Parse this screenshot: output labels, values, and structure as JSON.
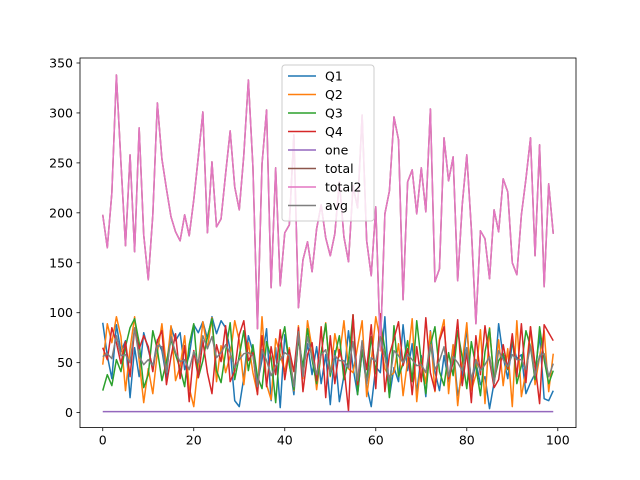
{
  "chart_data": {
    "type": "line",
    "x": [
      0,
      1,
      2,
      3,
      4,
      5,
      6,
      7,
      8,
      9,
      10,
      11,
      12,
      13,
      14,
      15,
      16,
      17,
      18,
      19,
      20,
      21,
      22,
      23,
      24,
      25,
      26,
      27,
      28,
      29,
      30,
      31,
      32,
      33,
      34,
      35,
      36,
      37,
      38,
      39,
      40,
      41,
      42,
      43,
      44,
      45,
      46,
      47,
      48,
      49,
      50,
      51,
      52,
      53,
      54,
      55,
      56,
      57,
      58,
      59,
      60,
      61,
      62,
      63,
      64,
      65,
      66,
      67,
      68,
      69,
      70,
      71,
      72,
      73,
      74,
      75,
      76,
      77,
      78,
      79,
      80,
      81,
      82,
      83,
      84,
      85,
      86,
      87,
      88,
      89,
      90,
      91,
      92,
      93,
      94,
      95,
      96,
      97,
      98,
      99
    ],
    "xlim": [
      -5,
      104
    ],
    "ylim": [
      -15,
      355
    ],
    "xticks": [
      0,
      20,
      40,
      60,
      80,
      100
    ],
    "yticks": [
      0,
      50,
      100,
      150,
      200,
      250,
      300,
      350
    ],
    "grid": false,
    "legend_position": "upper center",
    "series": [
      {
        "name": "Q1",
        "color": "#1f77b4",
        "values": [
          90,
          57,
          34,
          88,
          61,
          72,
          15,
          65,
          36,
          80,
          63,
          45,
          73,
          62,
          35,
          86,
          72,
          80,
          43,
          57,
          88,
          80,
          91,
          74,
          96,
          79,
          92,
          85,
          63,
          12,
          6,
          35,
          77,
          61,
          30,
          53,
          84,
          12,
          65,
          5,
          78,
          50,
          18,
          77,
          41,
          69,
          38,
          66,
          29,
          58,
          8,
          62,
          11,
          37,
          82,
          45,
          18,
          63,
          26,
          6,
          46,
          40,
          96,
          16,
          45,
          31,
          88,
          42,
          69,
          20,
          57,
          16,
          82,
          41,
          22,
          57,
          31,
          68,
          17,
          37,
          85,
          27,
          51,
          28,
          36,
          4,
          30,
          89,
          56,
          34,
          70,
          54,
          58,
          19,
          30,
          39,
          78,
          14,
          12,
          22
        ]
      },
      {
        "name": "Q2",
        "color": "#ff7f0e",
        "values": [
          48,
          89,
          70,
          96,
          76,
          22,
          64,
          96,
          52,
          10,
          44,
          19,
          60,
          89,
          45,
          87,
          32,
          46,
          77,
          25,
          6,
          49,
          91,
          64,
          95,
          31,
          67,
          40,
          57,
          92,
          72,
          28,
          70,
          40,
          19,
          96,
          28,
          13,
          74,
          58,
          41,
          65,
          22,
          87,
          34,
          92,
          64,
          23,
          59,
          90,
          36,
          79,
          56,
          92,
          44,
          40,
          66,
          92,
          16,
          51,
          96,
          72,
          44,
          36,
          40,
          69,
          17,
          52,
          94,
          11,
          54,
          29,
          81,
          21,
          74,
          93,
          19,
          68,
          7,
          50,
          90,
          22,
          38,
          83,
          9,
          85,
          29,
          73,
          27,
          64,
          6,
          92,
          16,
          41,
          86,
          28,
          56,
          82,
          21,
          59
        ]
      },
      {
        "name": "Q3",
        "color": "#2ca02c",
        "values": [
          22,
          38,
          27,
          53,
          41,
          66,
          85,
          94,
          70,
          25,
          38,
          82,
          63,
          32,
          51,
          73,
          58,
          44,
          26,
          68,
          89,
          35,
          52,
          76,
          94,
          42,
          30,
          61,
          90,
          33,
          57,
          82,
          42,
          68,
          36,
          24,
          71,
          55,
          10,
          67,
          86,
          48,
          23,
          74,
          46,
          84,
          53,
          29,
          60,
          89,
          37,
          57,
          77,
          33,
          52,
          98,
          18,
          63,
          32,
          76,
          39,
          91,
          64,
          15,
          87,
          36,
          49,
          72,
          31,
          92,
          51,
          19,
          67,
          86,
          41,
          27,
          60,
          37,
          82,
          55,
          24,
          71,
          46,
          17,
          61,
          84,
          32,
          52,
          59,
          43,
          77,
          29,
          47,
          82,
          66,
          33,
          86,
          53,
          29,
          42
        ]
      },
      {
        "name": "Q4",
        "color": "#d62728",
        "values": [
          65,
          53,
          85,
          70,
          49,
          71,
          36,
          84,
          64,
          77,
          66,
          41,
          72,
          82,
          28,
          56,
          79,
          34,
          67,
          11,
          62,
          35,
          72,
          40,
          19,
          68,
          51,
          87,
          31,
          42,
          78,
          92,
          52,
          60,
          18,
          77,
          26,
          66,
          38,
          83,
          33,
          63,
          41,
          85,
          21,
          58,
          70,
          32,
          86,
          15,
          77,
          29,
          63,
          46,
          2,
          98,
          28,
          71,
          43,
          88,
          24,
          99,
          21,
          58,
          74,
          91,
          47,
          64,
          18,
          66,
          31,
          95,
          40,
          22,
          72,
          86,
          34,
          50,
          93,
          27,
          61,
          10,
          77,
          38,
          87,
          52,
          25,
          33,
          68,
          44,
          79,
          36,
          89,
          30,
          86,
          48,
          9,
          88,
          80,
          72
        ]
      },
      {
        "name": "one",
        "color": "#9467bd",
        "values": [
          1,
          1,
          1,
          1,
          1,
          1,
          1,
          1,
          1,
          1,
          1,
          1,
          1,
          1,
          1,
          1,
          1,
          1,
          1,
          1,
          1,
          1,
          1,
          1,
          1,
          1,
          1,
          1,
          1,
          1,
          1,
          1,
          1,
          1,
          1,
          1,
          1,
          1,
          1,
          1,
          1,
          1,
          1,
          1,
          1,
          1,
          1,
          1,
          1,
          1,
          1,
          1,
          1,
          1,
          1,
          1,
          1,
          1,
          1,
          1,
          1,
          1,
          1,
          1,
          1,
          1,
          1,
          1,
          1,
          1,
          1,
          1,
          1,
          1,
          1,
          1,
          1,
          1,
          1,
          1,
          1,
          1,
          1,
          1,
          1,
          1,
          1,
          1,
          1,
          1,
          1,
          1,
          1,
          1,
          1,
          1,
          1,
          1,
          1,
          1
        ]
      },
      {
        "name": "total",
        "color": "#8c564b",
        "values": [
          198,
          165,
          220,
          338,
          250,
          167,
          258,
          161,
          285,
          178,
          133,
          198,
          310,
          254,
          224,
          196,
          181,
          172,
          198,
          177,
          213,
          256,
          301,
          180,
          251,
          186,
          194,
          239,
          282,
          226,
          203,
          258,
          333,
          246,
          84,
          249,
          303,
          125,
          245,
          127,
          180,
          188,
          278,
          105,
          153,
          171,
          141,
          184,
          208,
          175,
          157,
          179,
          231,
          176,
          151,
          227,
          205,
          298,
          172,
          137,
          206,
          62,
          199,
          222,
          296,
          273,
          113,
          231,
          243,
          199,
          245,
          201,
          304,
          131,
          144,
          275,
          232,
          256,
          132,
          208,
          258,
          184,
          89,
          182,
          174,
          134,
          203,
          181,
          234,
          221,
          150,
          138,
          198,
          234,
          275,
          157,
          268,
          126,
          229,
          179
        ]
      },
      {
        "name": "total2",
        "color": "#e377c2",
        "values": [
          198,
          165,
          220,
          338,
          250,
          167,
          258,
          161,
          285,
          178,
          133,
          198,
          310,
          254,
          224,
          196,
          181,
          172,
          198,
          177,
          213,
          256,
          301,
          180,
          251,
          186,
          194,
          239,
          282,
          226,
          203,
          258,
          333,
          246,
          84,
          249,
          303,
          125,
          245,
          127,
          180,
          188,
          278,
          105,
          153,
          171,
          141,
          184,
          208,
          175,
          157,
          179,
          231,
          176,
          151,
          227,
          205,
          298,
          172,
          137,
          206,
          62,
          199,
          222,
          296,
          273,
          113,
          231,
          243,
          199,
          245,
          201,
          304,
          131,
          144,
          275,
          232,
          256,
          132,
          208,
          258,
          184,
          89,
          182,
          174,
          134,
          203,
          181,
          234,
          221,
          150,
          138,
          198,
          234,
          275,
          157,
          268,
          126,
          229,
          179
        ]
      },
      {
        "name": "avg",
        "color": "#7f7f7f",
        "values": [
          56,
          59,
          54,
          77,
          57,
          58,
          50,
          85,
          56,
          48,
          53,
          47,
          67,
          66,
          40,
          76,
          60,
          51,
          53,
          43,
          61,
          50,
          77,
          64,
          76,
          55,
          60,
          68,
          60,
          45,
          53,
          59,
          60,
          57,
          26,
          63,
          52,
          37,
          47,
          53,
          60,
          57,
          26,
          81,
          36,
          76,
          56,
          38,
          58,
          63,
          40,
          57,
          52,
          52,
          45,
          71,
          32,
          72,
          29,
          55,
          51,
          76,
          56,
          31,
          62,
          57,
          50,
          58,
          53,
          47,
          48,
          40,
          68,
          43,
          52,
          66,
          36,
          56,
          50,
          42,
          65,
          33,
          53,
          42,
          48,
          56,
          29,
          62,
          53,
          46,
          58,
          53,
          53,
          43,
          67,
          37,
          57,
          59,
          36,
          49
        ]
      }
    ]
  }
}
